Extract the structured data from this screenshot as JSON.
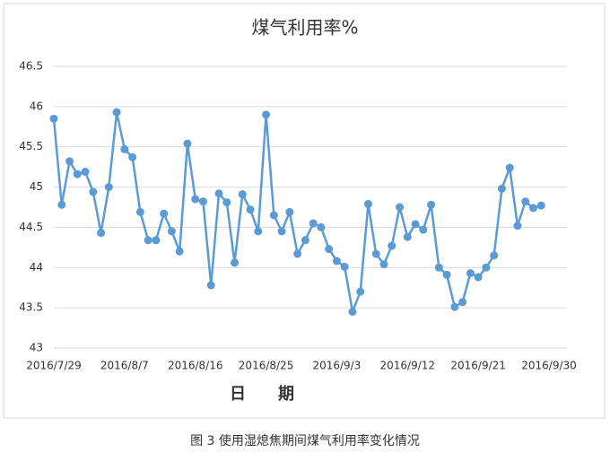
{
  "chart_data": {
    "type": "line",
    "title": "煤气利用率%",
    "x_label": "日　　期",
    "caption": "图 3  使用湿熄焦期间煤气利用率变化情况",
    "categories": [
      "2016/7/29",
      null,
      null,
      null,
      null,
      null,
      null,
      null,
      null,
      "2016/8/7",
      null,
      null,
      null,
      null,
      null,
      null,
      null,
      null,
      "2016/8/16",
      null,
      null,
      null,
      null,
      null,
      null,
      null,
      null,
      "2016/8/25",
      null,
      null,
      null,
      null,
      null,
      null,
      null,
      null,
      "2016/9/3",
      null,
      null,
      null,
      null,
      null,
      null,
      null,
      null,
      "2016/9/12",
      null,
      null,
      null,
      null,
      null,
      null,
      null,
      null,
      "2016/9/21",
      null,
      null,
      null,
      null,
      null,
      null,
      null,
      null,
      "2016/9/30"
    ],
    "series": [
      {
        "name": "煤气利用率",
        "color": "#5b9bd5",
        "values": [
          45.85,
          44.78,
          45.32,
          45.16,
          45.19,
          44.94,
          44.43,
          45.0,
          45.93,
          45.47,
          45.37,
          44.69,
          44.34,
          44.34,
          44.67,
          44.45,
          44.2,
          45.54,
          44.85,
          44.82,
          43.78,
          44.92,
          44.81,
          44.06,
          44.91,
          44.72,
          44.45,
          45.9,
          44.65,
          44.45,
          44.69,
          44.17,
          44.34,
          44.55,
          44.5,
          44.23,
          44.08,
          44.01,
          43.45,
          43.7,
          44.79,
          44.17,
          44.04,
          44.27,
          44.75,
          44.38,
          44.54,
          44.47,
          44.78,
          44.0,
          43.91,
          43.51,
          43.57,
          43.93,
          43.88,
          44.0,
          44.15,
          44.98,
          45.24,
          44.52,
          44.82,
          44.74,
          44.77,
          null
        ]
      }
    ],
    "ylim": [
      43,
      46.5
    ],
    "yticks": [
      43,
      43.5,
      44,
      44.5,
      45,
      45.5,
      46,
      46.5
    ],
    "grid": true
  }
}
